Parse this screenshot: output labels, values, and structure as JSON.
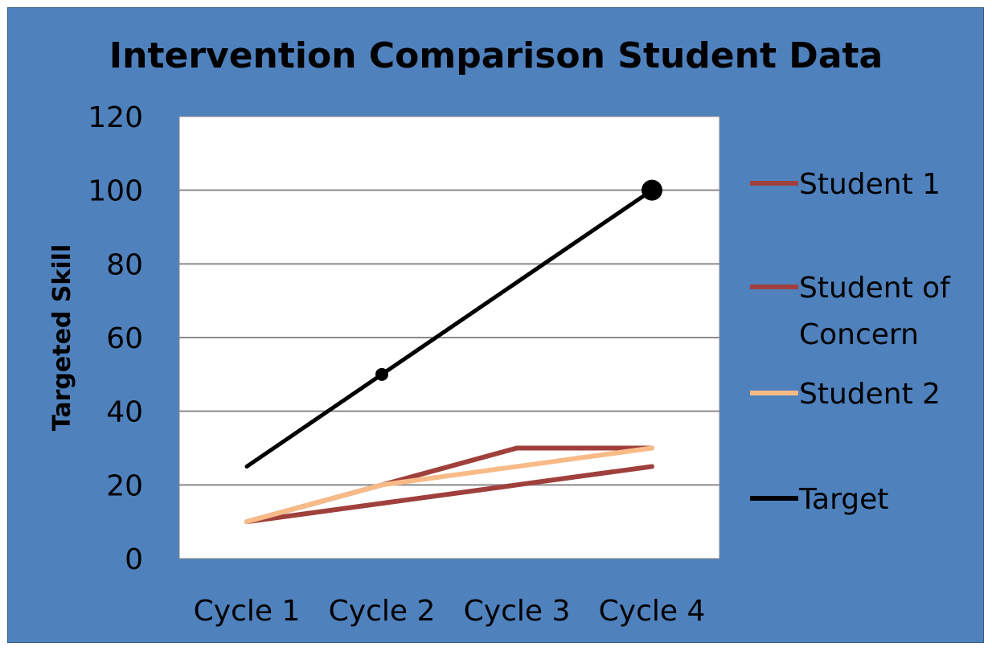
{
  "chart_data": {
    "type": "line",
    "title": "Intervention Comparison Student Data",
    "xlabel": "",
    "ylabel": "Targeted Skill",
    "categories": [
      "Cycle 1",
      "Cycle 2",
      "Cycle 3",
      "Cycle 4"
    ],
    "ylim": [
      0,
      120
    ],
    "yticks": [
      0,
      20,
      40,
      60,
      80,
      100,
      120
    ],
    "grid": true,
    "legend_position": "right",
    "series": [
      {
        "name": "Student 1",
        "values": [
          10,
          20,
          30,
          30
        ],
        "color": "#a0403c"
      },
      {
        "name": "Student of Concern",
        "values": [
          10,
          15,
          20,
          25
        ],
        "color": "#a0403c"
      },
      {
        "name": "Student 2",
        "values": [
          10,
          20,
          25,
          30
        ],
        "color": "#f8bb88"
      },
      {
        "name": "Target",
        "values": [
          25,
          50,
          75,
          100
        ],
        "color": "#000000"
      }
    ],
    "colors": {
      "frame_background": "#4f81bd",
      "plot_background": "#ffffff",
      "gridline": "#8a8a8a"
    }
  }
}
